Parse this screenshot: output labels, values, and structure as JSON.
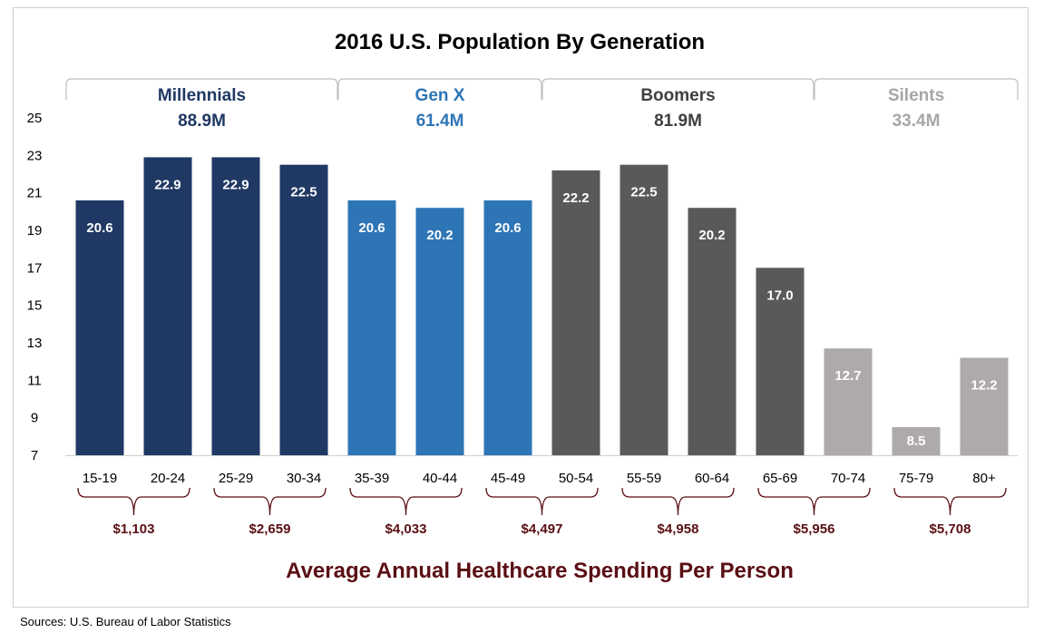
{
  "chart_data": {
    "type": "bar",
    "title": "2016 U.S. Population By Generation",
    "subtitle": "Average Annual Healthcare Spending Per Person",
    "source": "Sources:  U.S. Bureau of Labor Statistics",
    "ylim": [
      7,
      25
    ],
    "yticks": [
      "7",
      "9",
      "11",
      "13",
      "15",
      "17",
      "19",
      "21",
      "23",
      "25"
    ],
    "categories": [
      "15-19",
      "20-24",
      "25-29",
      "30-34",
      "35-39",
      "40-44",
      "45-49",
      "50-54",
      "55-59",
      "60-64",
      "65-69",
      "70-74",
      "75-79",
      "80+"
    ],
    "values": [
      20.6,
      22.9,
      22.9,
      22.5,
      20.6,
      20.2,
      20.6,
      22.2,
      22.5,
      20.2,
      17.0,
      12.7,
      8.5,
      12.2
    ],
    "value_labels": [
      "20.6",
      "22.9",
      "22.9",
      "22.5",
      "20.6",
      "20.2",
      "20.6",
      "22.2",
      "22.5",
      "20.2",
      "17.0",
      "12.7",
      "8.5",
      "12.2"
    ],
    "generations": [
      {
        "name": "Millennials",
        "population": "88.9M",
        "first": 0,
        "last": 3,
        "bar_color": "#1f3864",
        "text_color": "#1f3864"
      },
      {
        "name": "Gen X",
        "population": "61.4M",
        "first": 4,
        "last": 6,
        "bar_color": "#2e75b6",
        "text_color": "#2e75b6"
      },
      {
        "name": "Boomers",
        "population": "81.9M",
        "first": 7,
        "last": 10,
        "bar_color": "#595959",
        "text_color": "#404040"
      },
      {
        "name": "Silents",
        "population": "33.4M",
        "first": 11,
        "last": 13,
        "bar_color": "#aeaaaa",
        "text_color": "#a6a6a6"
      }
    ],
    "spending": [
      {
        "label": "$1,103",
        "first": 0,
        "last": 1
      },
      {
        "label": "$2,659",
        "first": 2,
        "last": 3
      },
      {
        "label": "$4,033",
        "first": 4,
        "last": 5
      },
      {
        "label": "$4,497",
        "first": 6,
        "last": 7
      },
      {
        "label": "$4,958",
        "first": 8,
        "last": 9
      },
      {
        "label": "$5,956",
        "first": 10,
        "last": 11
      },
      {
        "label": "$5,708",
        "first": 12,
        "last": 13
      }
    ],
    "bracket_color": "#5a0f14",
    "value_label_color": "#ffffff",
    "grid": false
  }
}
